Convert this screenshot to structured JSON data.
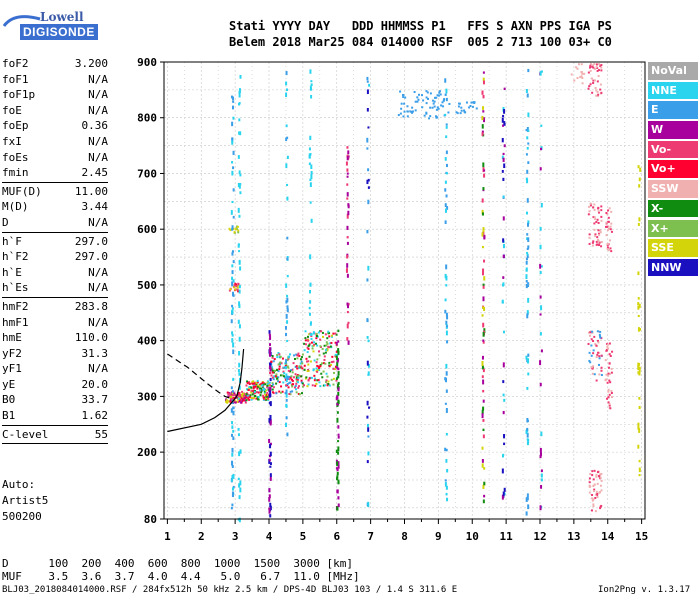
{
  "logo": {
    "line1": "Lowell",
    "line2": "DIGISONDE"
  },
  "header": {
    "line1": "Stati YYYY DAY   DDD HHMMSS P1   FFS S AXN PPS IGA PS",
    "line2": "Belem 2018 Mar25 084 014000 RSF  005 2 713 100 03+ C0"
  },
  "params_top": [
    {
      "key": "foF2",
      "value": "3.200"
    },
    {
      "key": "foF1",
      "value": "N/A"
    },
    {
      "key": "foF1p",
      "value": "N/A"
    },
    {
      "key": "foE",
      "value": "N/A"
    },
    {
      "key": "foEp",
      "value": "0.36"
    },
    {
      "key": "fxI",
      "value": "N/A"
    },
    {
      "key": "foEs",
      "value": "N/A"
    },
    {
      "key": "fmin",
      "value": "2.45"
    }
  ],
  "params_muf": [
    {
      "key": "MUF(D)",
      "value": "11.00"
    },
    {
      "key": "M(D)",
      "value": "3.44"
    },
    {
      "key": "D",
      "value": "N/A"
    }
  ],
  "params_h": [
    {
      "key": "h`F",
      "value": "297.0"
    },
    {
      "key": "h`F2",
      "value": "297.0"
    },
    {
      "key": "h`E",
      "value": "N/A"
    },
    {
      "key": "h`Es",
      "value": "N/A"
    }
  ],
  "params_hm": [
    {
      "key": "hmF2",
      "value": "283.8"
    },
    {
      "key": "hmF1",
      "value": "N/A"
    },
    {
      "key": "hmE",
      "value": "110.0"
    },
    {
      "key": "yF2",
      "value": "31.3"
    },
    {
      "key": "yF1",
      "value": "N/A"
    },
    {
      "key": "yE",
      "value": "20.0"
    },
    {
      "key": "B0",
      "value": "33.7"
    },
    {
      "key": "B1",
      "value": "1.62"
    }
  ],
  "params_c": [
    {
      "key": "C-level",
      "value": "55"
    }
  ],
  "auto": {
    "line1": "Auto:",
    "line2": "Artist5",
    "line3": "500200"
  },
  "bottom": {
    "d_line": "D      100  200  400  600  800  1000  1500  3000 [km]",
    "muf_line": "MUF    3.5  3.6  3.7  4.0  4.4   5.0   6.7  11.0 [MHz]"
  },
  "footer": {
    "left": "BLJ03_2018084014000.RSF / 284fx512h 50 kHz 2.5 km / DPS-4D BLJ03 103 / 1.4 S 311.6 E",
    "right": "Ion2Png v. 1.3.17"
  },
  "legend": [
    {
      "label": "NoVal",
      "color": "#a9a9a9"
    },
    {
      "label": "NNE",
      "color": "#2ad4ee"
    },
    {
      "label": "E",
      "color": "#3a9ee8"
    },
    {
      "label": "W",
      "color": "#a8009c"
    },
    {
      "label": "Vo-",
      "color": "#ee3a73"
    },
    {
      "label": "Vo+",
      "color": "#ff0030"
    },
    {
      "label": "SSW",
      "color": "#f0b0b0"
    },
    {
      "label": "X-",
      "color": "#108c10"
    },
    {
      "label": "X+",
      "color": "#7ec050"
    },
    {
      "label": "SSE",
      "color": "#d4d40a"
    },
    {
      "label": "NNW",
      "color": "#1a10c0"
    }
  ],
  "chart_data": {
    "type": "scatter",
    "x_ticks": [
      1,
      2,
      3,
      4,
      5,
      6,
      7,
      8,
      9,
      10,
      11,
      12,
      13,
      14,
      15
    ],
    "y_ticks": [
      80,
      200,
      300,
      400,
      500,
      600,
      700,
      800,
      900
    ],
    "xlim": [
      0.9,
      15.1
    ],
    "ylim": [
      80,
      900
    ],
    "grid": true,
    "profile_solid": [
      [
        1.0,
        237
      ],
      [
        2.0,
        250
      ],
      [
        2.4,
        262
      ],
      [
        2.7,
        275
      ],
      [
        2.9,
        289
      ],
      [
        3.05,
        300
      ],
      [
        3.15,
        325
      ],
      [
        3.2,
        350
      ],
      [
        3.25,
        385
      ]
    ],
    "profile_dashed": [
      [
        1.0,
        376
      ],
      [
        1.6,
        352
      ],
      [
        2.2,
        322
      ],
      [
        2.5,
        308
      ],
      [
        2.7,
        300
      ],
      [
        2.85,
        297
      ]
    ],
    "echo_clusters": [
      {
        "x": [
          2.7,
          3.3
        ],
        "y": [
          290,
          310
        ],
        "colors": [
          "#ff0030",
          "#ee3a73",
          "#a8009c",
          "#d4d40a"
        ],
        "n": 120
      },
      {
        "x": [
          3.3,
          4.0
        ],
        "y": [
          295,
          330
        ],
        "colors": [
          "#ff0030",
          "#ee3a73",
          "#108c10",
          "#d4d40a",
          "#2ad4ee"
        ],
        "n": 140
      },
      {
        "x": [
          4.0,
          5.0
        ],
        "y": [
          305,
          380
        ],
        "colors": [
          "#ff0030",
          "#ee3a73",
          "#108c10",
          "#7ec050",
          "#2ad4ee",
          "#3a9ee8"
        ],
        "n": 170
      },
      {
        "x": [
          5.0,
          6.0
        ],
        "y": [
          320,
          420
        ],
        "colors": [
          "#ff0030",
          "#ee3a73",
          "#108c10",
          "#7ec050",
          "#2ad4ee",
          "#d4d40a"
        ],
        "n": 170
      },
      {
        "x": [
          2.8,
          3.1
        ],
        "y": [
          490,
          505
        ],
        "colors": [
          "#ff0030",
          "#d4d40a",
          "#ee3a73"
        ],
        "n": 20
      },
      {
        "x": [
          2.8,
          3.1
        ],
        "y": [
          595,
          610
        ],
        "colors": [
          "#d4d40a",
          "#7ec050"
        ],
        "n": 15
      },
      {
        "x": [
          7.8,
          9.3
        ],
        "y": [
          800,
          850
        ],
        "colors": [
          "#3a9ee8"
        ],
        "n": 70
      },
      {
        "x": [
          9.5,
          10.2
        ],
        "y": [
          810,
          830
        ],
        "colors": [
          "#3a9ee8"
        ],
        "n": 20
      },
      {
        "x": [
          13.4,
          13.8
        ],
        "y": [
          570,
          650
        ],
        "colors": [
          "#f0b0b0",
          "#ee3a73"
        ],
        "n": 50
      },
      {
        "x": [
          13.4,
          13.8
        ],
        "y": [
          330,
          420
        ],
        "colors": [
          "#f0b0b0",
          "#3a9ee8",
          "#ee3a73"
        ],
        "n": 50
      },
      {
        "x": [
          13.4,
          13.8
        ],
        "y": [
          90,
          170
        ],
        "colors": [
          "#f0b0b0",
          "#ee3a73"
        ],
        "n": 50
      },
      {
        "x": [
          13.4,
          13.8
        ],
        "y": [
          840,
          900
        ],
        "colors": [
          "#f0b0b0",
          "#ee3a73"
        ],
        "n": 40
      },
      {
        "x": [
          13.9,
          14.1
        ],
        "y": [
          280,
          400
        ],
        "colors": [
          "#f0b0b0",
          "#ee3a73"
        ],
        "n": 40
      },
      {
        "x": [
          13.9,
          14.1
        ],
        "y": [
          560,
          640
        ],
        "colors": [
          "#f0b0b0",
          "#ee3a73"
        ],
        "n": 30
      },
      {
        "x": [
          12.9,
          13.3
        ],
        "y": [
          860,
          900
        ],
        "colors": [
          "#f0b0b0"
        ],
        "n": 15
      }
    ],
    "vertical_streaks": [
      {
        "x": 2.9,
        "y": [
          80,
          880
        ],
        "colors": [
          "#2ad4ee",
          "#3a9ee8"
        ],
        "n": 70
      },
      {
        "x": 3.1,
        "y": [
          80,
          880
        ],
        "colors": [
          "#2ad4ee"
        ],
        "n": 50
      },
      {
        "x": 4.0,
        "y": [
          80,
          420
        ],
        "colors": [
          "#1a10c0",
          "#a8009c"
        ],
        "n": 50
      },
      {
        "x": 4.5,
        "y": [
          200,
          900
        ],
        "colors": [
          "#2ad4ee",
          "#3a9ee8"
        ],
        "n": 40
      },
      {
        "x": 5.2,
        "y": [
          400,
          900
        ],
        "colors": [
          "#2ad4ee"
        ],
        "n": 30
      },
      {
        "x": 6.0,
        "y": [
          100,
          420
        ],
        "colors": [
          "#a8009c",
          "#108c10"
        ],
        "n": 60
      },
      {
        "x": 6.3,
        "y": [
          400,
          750
        ],
        "colors": [
          "#a8009c",
          "#ee3a73"
        ],
        "n": 35
      },
      {
        "x": 6.9,
        "y": [
          80,
          900
        ],
        "colors": [
          "#2ad4ee",
          "#3a9ee8",
          "#1a10c0"
        ],
        "n": 35
      },
      {
        "x": 9.2,
        "y": [
          100,
          900
        ],
        "colors": [
          "#2ad4ee",
          "#3a9ee8"
        ],
        "n": 50
      },
      {
        "x": 10.3,
        "y": [
          100,
          900
        ],
        "colors": [
          "#108c10",
          "#a8009c",
          "#ee3a73",
          "#d4d40a"
        ],
        "n": 70
      },
      {
        "x": 10.9,
        "y": [
          100,
          900
        ],
        "colors": [
          "#a8009c",
          "#1a10c0",
          "#2ad4ee"
        ],
        "n": 45
      },
      {
        "x": 11.6,
        "y": [
          90,
          900
        ],
        "colors": [
          "#3a9ee8",
          "#2ad4ee"
        ],
        "n": 60
      },
      {
        "x": 12.0,
        "y": [
          100,
          900
        ],
        "colors": [
          "#2ad4ee",
          "#a8009c"
        ],
        "n": 30
      },
      {
        "x": 14.9,
        "y": [
          150,
          720
        ],
        "colors": [
          "#d4d40a"
        ],
        "n": 30
      }
    ]
  }
}
